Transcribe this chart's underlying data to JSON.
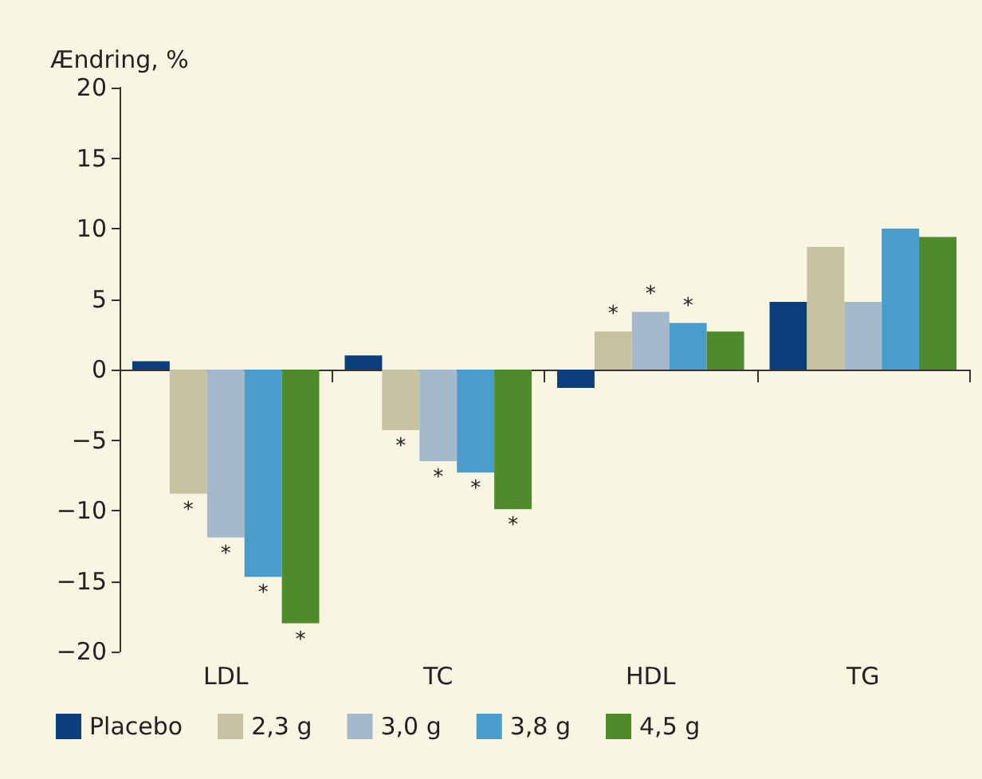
{
  "chart_data": {
    "type": "bar",
    "ylabel": "Ændring, %",
    "categories": [
      "LDL",
      "TC",
      "HDL",
      "TG"
    ],
    "series": [
      {
        "name": "Placebo",
        "color": "#0b3f7c",
        "values": [
          0.6,
          1.0,
          -1.3,
          4.8
        ]
      },
      {
        "name": "2,3 g",
        "color": "#c6c1a1",
        "values": [
          -8.8,
          -4.3,
          2.7,
          8.7
        ],
        "value_labels": [
          "*",
          "*",
          "*",
          null
        ]
      },
      {
        "name": "3,0 g",
        "color": "#a4b9c9",
        "values": [
          -11.9,
          -6.5,
          4.1,
          4.8
        ],
        "value_labels": [
          "*",
          "*",
          "*",
          null
        ]
      },
      {
        "name": "3,8 g",
        "color": "#4a9dca",
        "values": [
          -14.7,
          -7.3,
          3.3,
          10.0
        ],
        "value_labels": [
          "*",
          "*",
          "*",
          null
        ]
      },
      {
        "name": "4,5 g",
        "color": "#4f8a2b",
        "values": [
          -18.0,
          -9.9,
          2.7,
          9.4
        ],
        "value_labels": [
          "*",
          "*",
          null,
          null
        ]
      }
    ],
    "ylim": [
      -20,
      20
    ],
    "yticks": [
      {
        "value": -20,
        "label": "−20"
      },
      {
        "value": -15,
        "label": "−15"
      },
      {
        "value": -10,
        "label": "−10"
      },
      {
        "value": -5,
        "label": "−5"
      },
      0,
      5,
      10,
      15,
      20
    ],
    "legend": "bottom left"
  }
}
